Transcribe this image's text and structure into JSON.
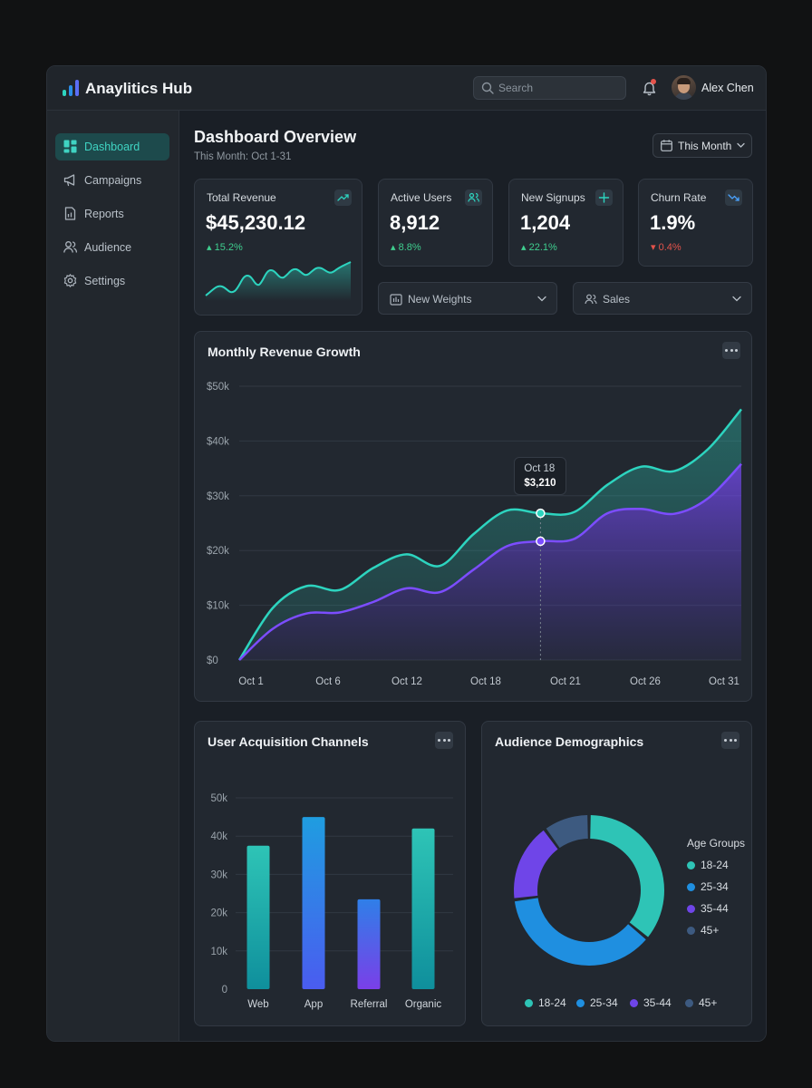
{
  "app": {
    "title": "Anaylitics Hub",
    "search_placeholder": "Search",
    "user_name": "Alex Chen",
    "accent": "#2dd4bf",
    "accent_purple": "#7c4dff"
  },
  "sidebar": {
    "items": [
      {
        "label": "Dashboard",
        "icon": "grid-icon",
        "active": true
      },
      {
        "label": "Campaigns",
        "icon": "megaphone-icon",
        "active": false
      },
      {
        "label": "Reports",
        "icon": "report-icon",
        "active": false
      },
      {
        "label": "Audience",
        "icon": "users-icon",
        "active": false
      },
      {
        "label": "Settings",
        "icon": "gear-icon",
        "active": false
      }
    ]
  },
  "header": {
    "title": "Dashboard Overview",
    "subtitle": "This Month: Oct 1-31",
    "range_label": "This Month"
  },
  "kpis": [
    {
      "title": "Total Revenue",
      "value": "$45,230.12",
      "change": "15.2%",
      "direction": "up",
      "icon": "trend-up-icon"
    },
    {
      "title": "Active Users",
      "value": "8,912",
      "change": "8.8%",
      "direction": "up",
      "icon": "users-icon"
    },
    {
      "title": "New Signups",
      "value": "1,204",
      "change": "22.1%",
      "direction": "up",
      "icon": "plus-icon"
    },
    {
      "title": "Churn Rate",
      "value": "1.9%",
      "change": "0.4%",
      "direction": "down",
      "icon": "trend-down-icon"
    }
  ],
  "filters": [
    {
      "label": "New Weights",
      "icon": "bar-icon"
    },
    {
      "label": "Sales",
      "icon": "users-icon"
    }
  ],
  "revenue_chart": {
    "title": "Monthly Revenue Growth",
    "tooltip": {
      "date": "Oct 18",
      "value": "$3,210"
    }
  },
  "acquisition": {
    "title": "User Acquisition Channels"
  },
  "demographics": {
    "title": "Audience Demographics",
    "legend_title": "Age Groups"
  },
  "chart_data": [
    {
      "type": "area",
      "title": "Monthly Revenue Growth",
      "x_ticks": [
        "Oct 1",
        "Oct 6",
        "Oct 12",
        "Oct 18",
        "Oct 21",
        "Oct 26",
        "Oct 31"
      ],
      "y_ticks": [
        "$0",
        "$10k",
        "$20k",
        "$30k",
        "$40k",
        "$50k"
      ],
      "ylim": [
        0,
        50000
      ],
      "grid": true,
      "series": [
        {
          "color": "#2dd4bf",
          "x": [
            1,
            3,
            5,
            7,
            9,
            11,
            13,
            15,
            17,
            19,
            21,
            23,
            25,
            27,
            29,
            31
          ],
          "y": [
            0,
            9500,
            13500,
            12800,
            16800,
            19300,
            17200,
            23000,
            27300,
            26800,
            27000,
            32000,
            35300,
            34500,
            38500,
            45800
          ]
        },
        {
          "color": "#7c4dff",
          "x": [
            1,
            3,
            5,
            7,
            9,
            11,
            13,
            15,
            17,
            19,
            21,
            23,
            25,
            27,
            29,
            31
          ],
          "y": [
            0,
            5700,
            8500,
            8700,
            10600,
            13100,
            12400,
            16500,
            20800,
            21700,
            22100,
            26800,
            27600,
            26700,
            29500,
            35800
          ]
        }
      ],
      "highlight": {
        "x": 19,
        "label": "Oct 18",
        "value": "$3,210"
      }
    },
    {
      "type": "bar",
      "title": "User Acquisition Channels",
      "categories": [
        "Web",
        "App",
        "Referral",
        "Organic"
      ],
      "values": [
        37500,
        45000,
        23500,
        42000
      ],
      "y_ticks": [
        "0",
        "10k",
        "20k",
        "30k",
        "40k",
        "50k"
      ],
      "ylim": [
        0,
        50000
      ],
      "grid": true
    },
    {
      "type": "pie",
      "title": "Audience Demographics",
      "legend_title": "Age Groups",
      "labels": [
        "18-24",
        "25-34",
        "35-44",
        "45+"
      ],
      "values": [
        36,
        37,
        17,
        10
      ],
      "colors": [
        "#2ec4b6",
        "#1f8fe0",
        "#6f45e8",
        "#3d5a80"
      ],
      "legend": "right"
    }
  ]
}
